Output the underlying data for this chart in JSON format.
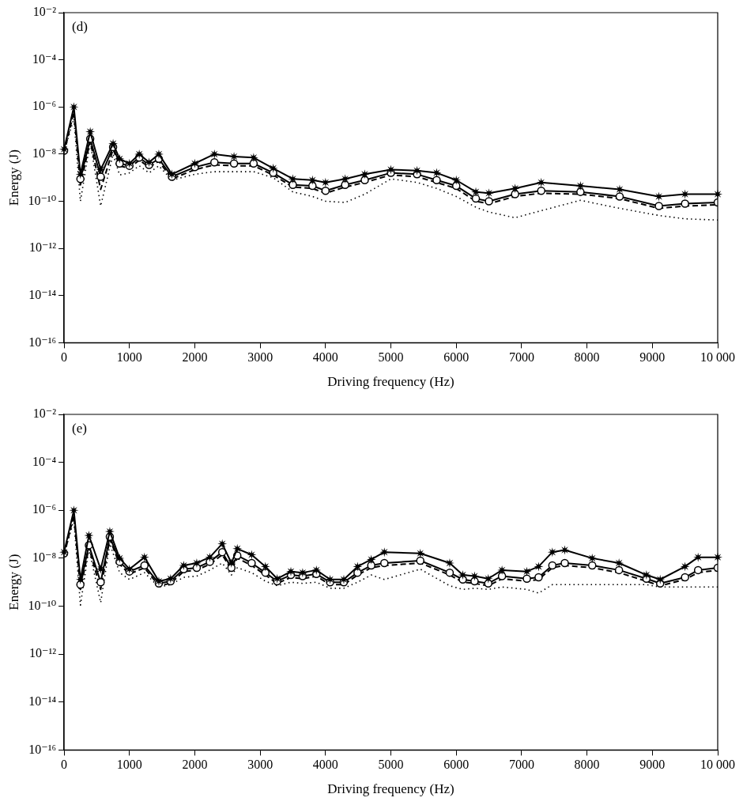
{
  "chart_data": [
    {
      "type": "line",
      "xlabel": "Driving frequency (Hz)",
      "ylabel": "Energy (J)",
      "annotations": [
        "(d)"
      ],
      "log": "y",
      "grid": false,
      "legend": false,
      "x": [
        0,
        150,
        250,
        400,
        560,
        750,
        850,
        1000,
        1150,
        1300,
        1450,
        1650,
        2000,
        2300,
        2600,
        2900,
        3200,
        3500,
        3800,
        4000,
        4300,
        4600,
        5000,
        5400,
        5700,
        6000,
        6300,
        6500,
        6900,
        7300,
        7900,
        8500,
        9100,
        9500,
        10000
      ],
      "xlim": [
        0,
        10000
      ],
      "xticks": [
        0,
        1000,
        2000,
        3000,
        4000,
        5000,
        6000,
        7000,
        8000,
        9000,
        {
          "value": 10000,
          "label": "10 000"
        }
      ],
      "ylim": [
        1e-16,
        0.01
      ],
      "yticks": [
        {
          "value": 1e-16,
          "label": "10⁻¹⁶"
        },
        {
          "value": 1e-14,
          "label": "10⁻¹⁴"
        },
        {
          "value": 1e-12,
          "label": "10⁻¹²"
        },
        {
          "value": 1e-10,
          "label": "10⁻¹⁰"
        },
        {
          "value": 1e-08,
          "label": "10⁻⁸"
        },
        {
          "value": 1e-06,
          "label": "10⁻⁶"
        },
        {
          "value": 0.0001,
          "label": "10⁻⁴"
        },
        {
          "value": 0.01,
          "label": "10⁻²"
        }
      ],
      "series": [
        {
          "color": "#000000",
          "marker": "star",
          "line_style": "solid",
          "values": [
            1.6e-08,
            1e-06,
            1.4e-09,
            8.9e-08,
            2.2e-09,
            2.8e-08,
            6.3e-09,
            4e-09,
            1e-08,
            4.5e-09,
            1e-08,
            1.4e-09,
            4e-09,
            1e-08,
            7.9e-09,
            7.1e-09,
            2.5e-09,
            8.9e-10,
            7.9e-10,
            6.3e-10,
            8.9e-10,
            1.4e-09,
            2.2e-09,
            2e-09,
            1.6e-09,
            7.9e-10,
            2.5e-10,
            2.2e-10,
            3.5e-10,
            6.3e-10,
            4.5e-10,
            3.2e-10,
            1.6e-10,
            2e-10,
            2e-10
          ]
        },
        {
          "color": "#000000",
          "marker": "circle",
          "line_style": "solid",
          "values": [
            1.4e-08,
            null,
            8.9e-10,
            4.5e-08,
            1.1e-09,
            2e-08,
            4e-09,
            3.2e-09,
            7.1e-09,
            3.5e-09,
            6.3e-09,
            1.1e-09,
            2.8e-09,
            4.5e-09,
            4e-09,
            4e-09,
            1.6e-09,
            5e-10,
            4.5e-10,
            2.8e-10,
            5e-10,
            7.9e-10,
            1.6e-09,
            1.4e-09,
            7.9e-10,
            4.5e-10,
            1.3e-10,
            1e-10,
            2e-10,
            2.8e-10,
            2.5e-10,
            1.6e-10,
            6.3e-11,
            7.9e-11,
            8.9e-11
          ]
        },
        {
          "color": "#000000",
          "marker": "none",
          "line_style": "dashed",
          "values": [
            1.1e-08,
            6.3e-07,
            5e-10,
            3.5e-08,
            3.2e-10,
            1.6e-08,
            3.2e-09,
            2.5e-09,
            5.6e-09,
            2.8e-09,
            5e-09,
            8.9e-10,
            2.2e-09,
            3.5e-09,
            3.2e-09,
            3.2e-09,
            1.3e-09,
            4e-10,
            3.5e-10,
            2.2e-10,
            4e-10,
            6.3e-10,
            1.3e-09,
            1.1e-09,
            6.3e-10,
            3.5e-10,
            1e-10,
            7.9e-11,
            1.6e-10,
            2.2e-10,
            2e-10,
            1.3e-10,
            5e-11,
            6.3e-11,
            7.1e-11
          ]
        },
        {
          "color": "#000000",
          "marker": "none",
          "line_style": "dotted",
          "values": [
            1.3e-08,
            3.2e-07,
            1e-10,
            3.2e-08,
            6.3e-11,
            1e-08,
            1.3e-09,
            1.6e-09,
            3.2e-09,
            1.6e-09,
            3.2e-09,
            7.9e-10,
            1.4e-09,
            1.8e-09,
            1.8e-09,
            1.8e-09,
            1e-09,
            2.5e-10,
            1.6e-10,
            1e-10,
            8.9e-11,
            2e-10,
            8.9e-10,
            6.3e-10,
            3.5e-10,
            1.6e-10,
            5.6e-11,
            3.5e-11,
            2e-11,
            4e-11,
            1.1e-10,
            5e-11,
            2.5e-11,
            1.8e-11,
            1.6e-11
          ]
        }
      ]
    },
    {
      "type": "line",
      "xlabel": "Driving frequency (Hz)",
      "ylabel": "Energy (J)",
      "annotations": [
        "(e)"
      ],
      "log": "y",
      "grid": false,
      "legend": false,
      "x": [
        0,
        150,
        250,
        380,
        560,
        700,
        850,
        1000,
        1230,
        1450,
        1630,
        1830,
        2030,
        2230,
        2420,
        2560,
        2650,
        2870,
        3080,
        3260,
        3470,
        3650,
        3860,
        4070,
        4280,
        4490,
        4700,
        4900,
        5450,
        5900,
        6100,
        6280,
        6490,
        6700,
        7080,
        7260,
        7470,
        7660,
        8080,
        8490,
        8910,
        9120,
        9500,
        9700,
        10000
      ],
      "xlim": [
        0,
        10000
      ],
      "xticks": [
        0,
        1000,
        2000,
        3000,
        4000,
        5000,
        6000,
        7000,
        8000,
        9000,
        {
          "value": 10000,
          "label": "10 000"
        }
      ],
      "ylim": [
        1e-16,
        0.01
      ],
      "yticks": [
        {
          "value": 1e-16,
          "label": "10⁻¹⁶"
        },
        {
          "value": 1e-14,
          "label": "10⁻¹⁴"
        },
        {
          "value": 1e-12,
          "label": "10⁻¹²"
        },
        {
          "value": 1e-10,
          "label": "10⁻¹⁰"
        },
        {
          "value": 1e-08,
          "label": "10⁻⁸"
        },
        {
          "value": 1e-06,
          "label": "10⁻⁶"
        },
        {
          "value": 0.0001,
          "label": "10⁻⁴"
        },
        {
          "value": 0.01,
          "label": "10⁻²"
        }
      ],
      "series": [
        {
          "color": "#000000",
          "marker": "star",
          "line_style": "solid",
          "values": [
            1.8e-08,
            1e-06,
            1.3e-09,
            8.9e-08,
            3.5e-09,
            1.3e-07,
            1e-08,
            3.5e-09,
            1.1e-08,
            1.1e-09,
            1.4e-09,
            5e-09,
            6.3e-09,
            1.1e-08,
            4e-08,
            6.3e-09,
            2.5e-08,
            1.4e-08,
            4.5e-09,
            1.4e-09,
            2.8e-09,
            2.5e-09,
            3.2e-09,
            1.3e-09,
            1.3e-09,
            4.5e-09,
            8.9e-09,
            1.8e-08,
            1.6e-08,
            6.3e-09,
            2e-09,
            1.8e-09,
            1.4e-09,
            3.2e-09,
            2.8e-09,
            4.5e-09,
            1.8e-08,
            2.2e-08,
            1e-08,
            6.3e-09,
            2e-09,
            1.3e-09,
            4.5e-09,
            1.1e-08,
            1.1e-08
          ]
        },
        {
          "color": "#000000",
          "marker": "circle",
          "line_style": "solid",
          "values": [
            1.6e-08,
            null,
            7.9e-10,
            3.5e-08,
            1e-09,
            7.9e-08,
            7.1e-09,
            2.8e-09,
            5e-09,
            8.9e-10,
            1.1e-09,
            3.5e-09,
            4e-09,
            7.1e-09,
            1.8e-08,
            4e-09,
            1.3e-08,
            6.3e-09,
            2.5e-09,
            1.1e-09,
            2e-09,
            1.8e-09,
            2.2e-09,
            1e-09,
            1e-09,
            2.5e-09,
            5e-09,
            6.3e-09,
            7.9e-09,
            2.5e-09,
            1.3e-09,
            1.1e-09,
            8.9e-10,
            1.8e-09,
            1.4e-09,
            1.6e-09,
            5e-09,
            6.3e-09,
            5e-09,
            3.2e-09,
            1.4e-09,
            8.9e-10,
            1.6e-09,
            3.2e-09,
            4e-09
          ]
        },
        {
          "color": "#000000",
          "marker": "none",
          "line_style": "dashed",
          "values": [
            1.3e-08,
            6.3e-07,
            5e-10,
            2.8e-08,
            5e-10,
            6.3e-08,
            5.6e-09,
            2.2e-09,
            4e-09,
            7.1e-10,
            8.9e-10,
            2.8e-09,
            3.2e-09,
            5.6e-09,
            1.4e-08,
            3.2e-09,
            1e-08,
            5e-09,
            2e-09,
            8.9e-10,
            1.6e-09,
            1.4e-09,
            1.8e-09,
            7.9e-10,
            7.9e-10,
            2e-09,
            4e-09,
            5e-09,
            6.3e-09,
            2e-09,
            1e-09,
            8.9e-10,
            7.1e-10,
            1.4e-09,
            1.1e-09,
            1.3e-09,
            4e-09,
            5e-09,
            4e-09,
            2.5e-09,
            1.1e-09,
            7.1e-10,
            1.3e-09,
            2.5e-09,
            3.2e-09
          ]
        },
        {
          "color": "#000000",
          "marker": "none",
          "line_style": "dotted",
          "values": [
            1.4e-08,
            4e-07,
            1.1e-10,
            2.5e-08,
            1.4e-10,
            4e-08,
            2.5e-09,
            1.3e-09,
            2.5e-09,
            6.3e-10,
            7.9e-10,
            1.6e-09,
            1.8e-09,
            3.2e-09,
            6.3e-09,
            2e-09,
            4e-09,
            2.5e-09,
            1.1e-09,
            7.1e-10,
            1e-09,
            8.9e-10,
            1e-09,
            5.6e-10,
            5.6e-10,
            1e-09,
            2e-09,
            1.3e-09,
            3.5e-09,
            7.1e-10,
            5e-10,
            5.6e-10,
            5e-10,
            6.3e-10,
            5e-10,
            3.5e-10,
            7.9e-10,
            7.9e-10,
            7.9e-10,
            7.9e-10,
            7.9e-10,
            6.3e-10,
            6.3e-10,
            6.3e-10,
            6.3e-10
          ]
        }
      ]
    }
  ]
}
